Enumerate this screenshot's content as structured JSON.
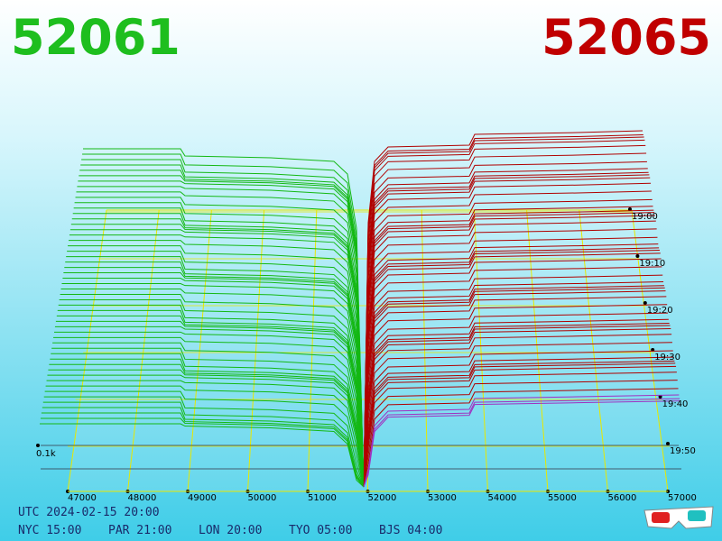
{
  "bid": "52061",
  "ask": "52065",
  "price_axis": [
    "47000",
    "48000",
    "49000",
    "50000",
    "51000",
    "52000",
    "53000",
    "54000",
    "55000",
    "56000",
    "57000"
  ],
  "time_axis": [
    "19:00",
    "19:10",
    "19:20",
    "19:30",
    "19:40",
    "19:50"
  ],
  "depth_label": "0.1k",
  "utc": "UTC 2024-02-15 20:00",
  "clocks": [
    "NYC 15:00",
    "PAR 21:00",
    "LON 20:00",
    "TYO 05:00",
    "BJS 04:00"
  ]
}
